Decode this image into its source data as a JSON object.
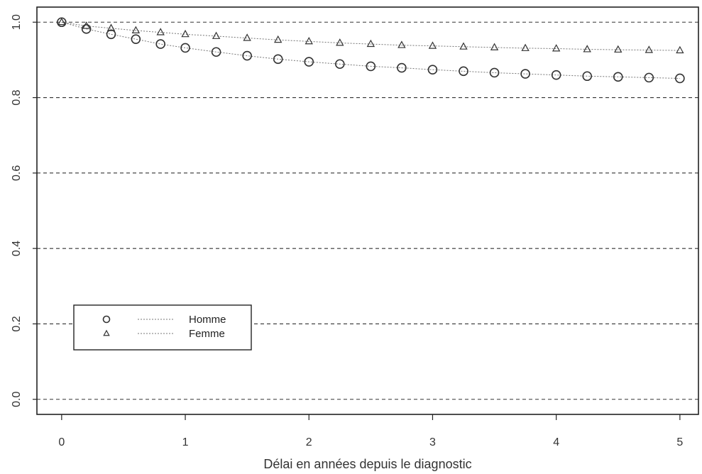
{
  "chart_data": {
    "type": "line",
    "title": "",
    "xlabel": "Délai en années depuis le diagnostic",
    "ylabel": "",
    "xlim": [
      -0.2,
      5.15
    ],
    "ylim": [
      -0.04,
      1.04
    ],
    "xticks": [
      0,
      1,
      2,
      3,
      4,
      5
    ],
    "xtick_labels": [
      "0",
      "1",
      "2",
      "3",
      "4",
      "5"
    ],
    "yticks": [
      0.0,
      0.2,
      0.4,
      0.6,
      0.8,
      1.0
    ],
    "ytick_labels": [
      "0.0",
      "0.2",
      "0.4",
      "0.6",
      "0.8",
      "1.0"
    ],
    "grid": "horizontal dashed",
    "legend_position": "bottom-left",
    "series": [
      {
        "name": "Homme",
        "marker": "circle",
        "x": [
          0,
          0.2,
          0.4,
          0.6,
          0.8,
          1.0,
          1.25,
          1.5,
          1.75,
          2.0,
          2.25,
          2.5,
          2.75,
          3.0,
          3.25,
          3.5,
          3.75,
          4.0,
          4.25,
          4.5,
          4.75,
          5.0
        ],
        "y": [
          1.0,
          0.982,
          0.968,
          0.955,
          0.942,
          0.932,
          0.921,
          0.911,
          0.902,
          0.895,
          0.889,
          0.883,
          0.879,
          0.874,
          0.87,
          0.866,
          0.863,
          0.86,
          0.857,
          0.855,
          0.853,
          0.851
        ]
      },
      {
        "name": "Femme",
        "marker": "triangle",
        "x": [
          0,
          0.2,
          0.4,
          0.6,
          0.8,
          1.0,
          1.25,
          1.5,
          1.75,
          2.0,
          2.25,
          2.5,
          2.75,
          3.0,
          3.25,
          3.5,
          3.75,
          4.0,
          4.25,
          4.5,
          4.75,
          5.0
        ],
        "y": [
          1.0,
          0.99,
          0.984,
          0.978,
          0.973,
          0.968,
          0.963,
          0.958,
          0.953,
          0.949,
          0.945,
          0.942,
          0.939,
          0.937,
          0.935,
          0.933,
          0.931,
          0.93,
          0.928,
          0.927,
          0.926,
          0.925
        ]
      }
    ]
  },
  "colors": {
    "axis": "#222222",
    "grid": "#333333",
    "marker": "#333333",
    "line": "#777777"
  }
}
